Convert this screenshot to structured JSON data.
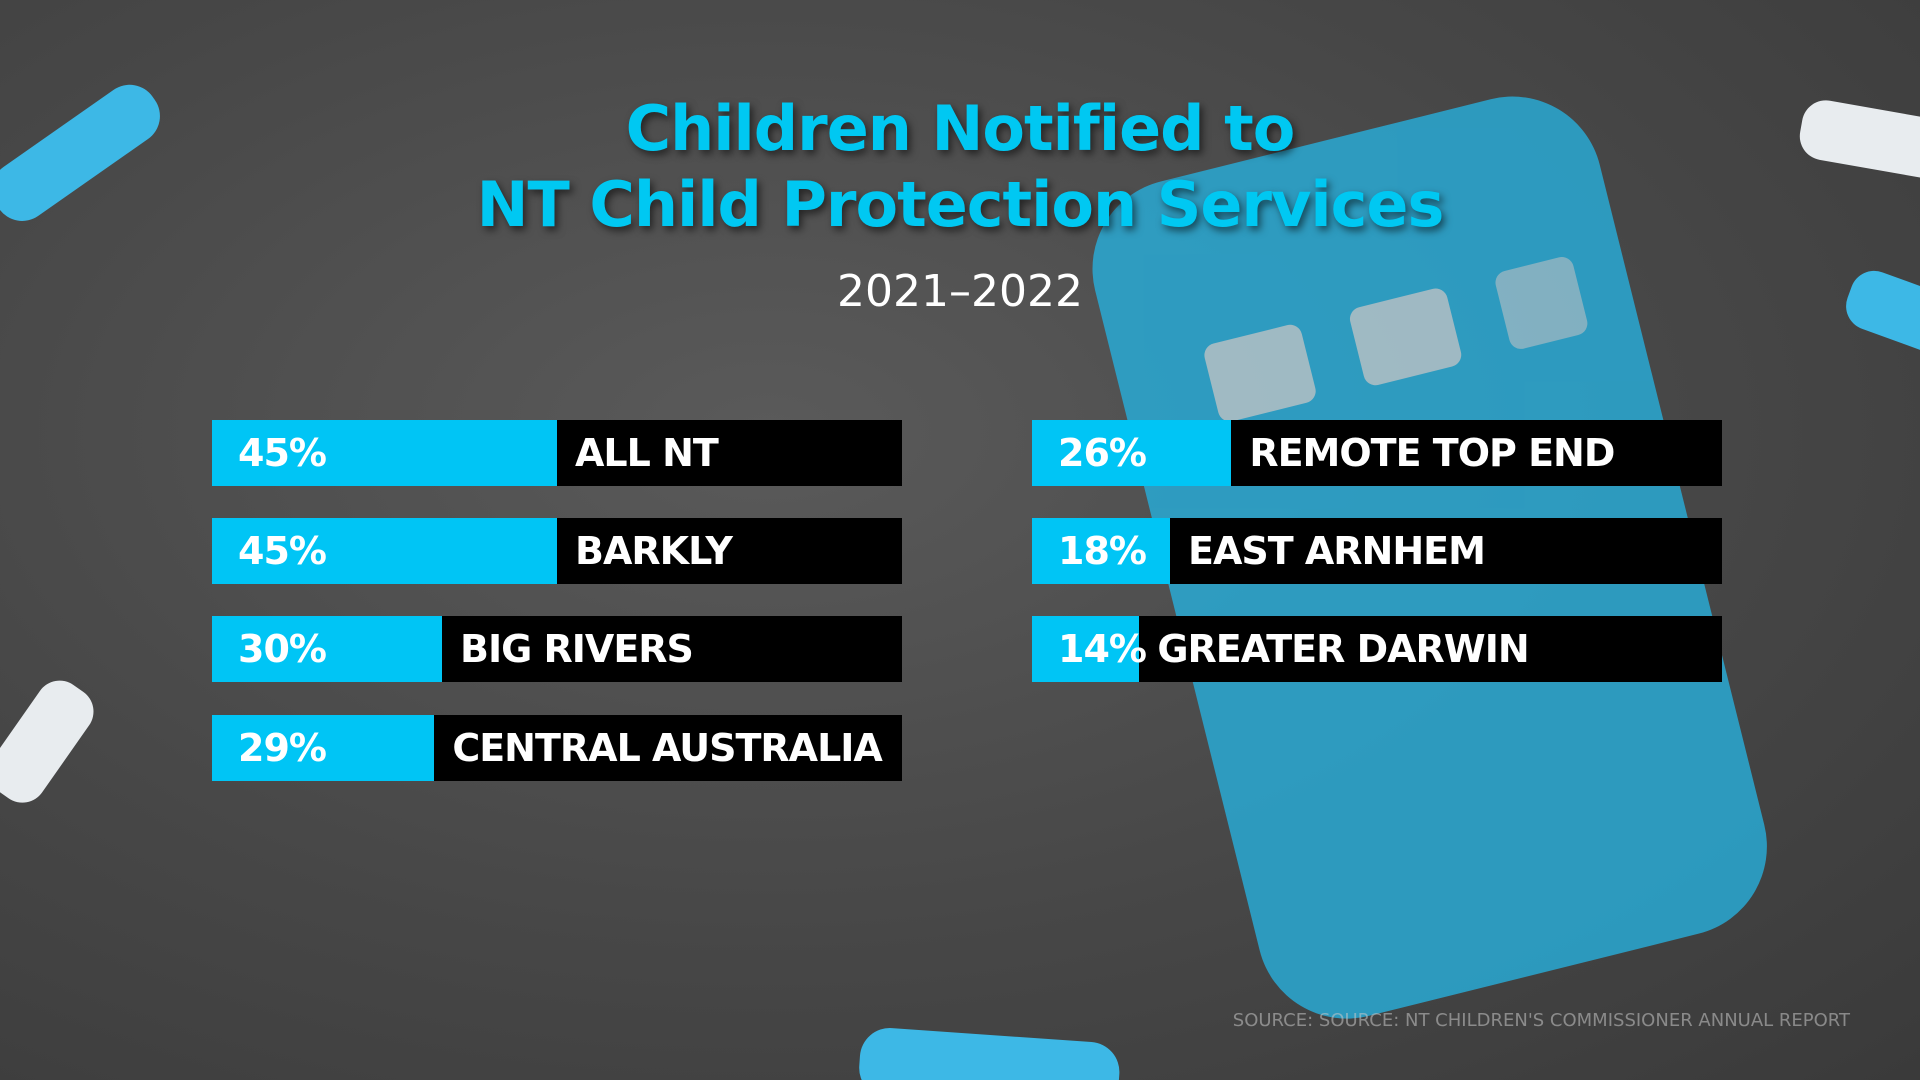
{
  "chart_data": {
    "type": "bar",
    "title": [
      "Children Notified to",
      "NT Child Protection Services"
    ],
    "subtitle": "2021–2022",
    "categories": [
      "ALL NT",
      "BARKLY",
      "BIG RIVERS",
      "CENTRAL AUSTRALIA",
      "REMOTE TOP END",
      "EAST ARNHEM",
      "GREATER DARWIN"
    ],
    "values": [
      45,
      45,
      30,
      29,
      26,
      18,
      14
    ],
    "value_labels": [
      "45%",
      "45%",
      "30%",
      "29%",
      "26%",
      "18%",
      "14%"
    ],
    "color": "#00c5f5",
    "source": "SOURCE: SOURCE: NT CHILDREN'S COMMISSIONER ANNUAL REPORT"
  }
}
